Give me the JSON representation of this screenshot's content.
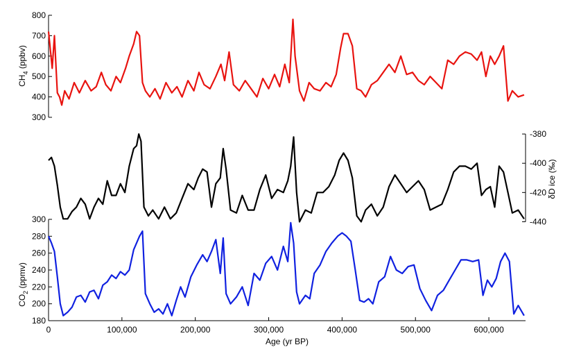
{
  "chart_data": {
    "type": "line",
    "x_axis": {
      "label": "Age (yr BP)",
      "lim": [
        0,
        650000
      ],
      "ticks": [
        0,
        100000,
        200000,
        300000,
        400000,
        500000,
        600000
      ],
      "tick_labels": [
        "0",
        "100,000",
        "200,000",
        "300,000",
        "400,000",
        "500,000",
        "600,000"
      ]
    },
    "panels": [
      {
        "name": "methane",
        "ylabel_main": "CH",
        "ylabel_sub": "4",
        "ylabel_tail": " (ppbv)",
        "axis_side": "left",
        "ylim": [
          300,
          800
        ],
        "ticks": [
          300,
          400,
          500,
          600,
          700,
          800
        ],
        "tick_labels": [
          "300",
          "400",
          "500",
          "600",
          "700",
          "800"
        ],
        "color": "#e8130f",
        "series": {
          "x": [
            0,
            5000,
            8000,
            12000,
            15000,
            18000,
            22000,
            28000,
            35000,
            42000,
            50000,
            58000,
            65000,
            72000,
            78000,
            85000,
            92000,
            98000,
            105000,
            110000,
            116000,
            120000,
            124000,
            128000,
            132000,
            138000,
            145000,
            152000,
            160000,
            168000,
            175000,
            182000,
            190000,
            198000,
            205000,
            212000,
            220000,
            228000,
            235000,
            240000,
            246000,
            252000,
            260000,
            268000,
            276000,
            284000,
            292000,
            300000,
            308000,
            315000,
            322000,
            328000,
            333000,
            336000,
            342000,
            348000,
            355000,
            362000,
            370000,
            378000,
            385000,
            392000,
            398000,
            402000,
            408000,
            414000,
            420000,
            426000,
            432000,
            440000,
            448000,
            456000,
            464000,
            472000,
            480000,
            488000,
            496000,
            504000,
            512000,
            520000,
            528000,
            536000,
            544000,
            552000,
            560000,
            568000,
            576000,
            584000,
            590000,
            596000,
            602000,
            608000,
            614000,
            620000,
            626000,
            632000,
            640000,
            648000
          ],
          "y": [
            720,
            540,
            700,
            420,
            400,
            360,
            430,
            390,
            470,
            420,
            480,
            430,
            450,
            520,
            460,
            430,
            500,
            470,
            540,
            600,
            660,
            720,
            700,
            470,
            430,
            400,
            440,
            390,
            470,
            420,
            450,
            400,
            480,
            430,
            520,
            460,
            440,
            500,
            560,
            480,
            620,
            460,
            430,
            480,
            440,
            400,
            490,
            440,
            510,
            450,
            560,
            470,
            780,
            600,
            430,
            380,
            470,
            440,
            430,
            470,
            450,
            510,
            640,
            710,
            710,
            650,
            440,
            430,
            400,
            460,
            480,
            520,
            560,
            520,
            600,
            510,
            520,
            480,
            460,
            500,
            470,
            440,
            580,
            560,
            600,
            620,
            610,
            580,
            620,
            500,
            600,
            560,
            600,
            650,
            380,
            430,
            400,
            410
          ]
        }
      },
      {
        "name": "deuterium",
        "ylabel_main": "δD ice (‰)",
        "axis_side": "right",
        "ylim": [
          -445,
          -370
        ],
        "ticks": [
          -440,
          -420,
          -400,
          -380
        ],
        "tick_labels": [
          "-440",
          "-420",
          "-400",
          "-380"
        ],
        "color": "#000000",
        "series": {
          "x": [
            0,
            4000,
            8000,
            12000,
            16000,
            20000,
            26000,
            32000,
            38000,
            44000,
            50000,
            56000,
            62000,
            68000,
            74000,
            80000,
            86000,
            92000,
            98000,
            104000,
            110000,
            116000,
            120000,
            123000,
            126000,
            130000,
            136000,
            142000,
            150000,
            158000,
            166000,
            174000,
            182000,
            190000,
            198000,
            204000,
            210000,
            216000,
            222000,
            228000,
            234000,
            238000,
            242000,
            248000,
            256000,
            264000,
            272000,
            280000,
            288000,
            296000,
            304000,
            312000,
            320000,
            326000,
            330000,
            334000,
            338000,
            342000,
            350000,
            358000,
            366000,
            374000,
            382000,
            390000,
            396000,
            402000,
            408000,
            414000,
            420000,
            426000,
            432000,
            440000,
            448000,
            456000,
            464000,
            472000,
            480000,
            488000,
            496000,
            504000,
            512000,
            520000,
            528000,
            536000,
            544000,
            552000,
            560000,
            568000,
            576000,
            584000,
            590000,
            596000,
            602000,
            608000,
            614000,
            620000,
            626000,
            632000,
            640000,
            648000
          ],
          "y": [
            -398,
            -396,
            -402,
            -415,
            -430,
            -438,
            -438,
            -433,
            -430,
            -424,
            -428,
            -438,
            -430,
            -424,
            -428,
            -412,
            -422,
            -422,
            -414,
            -420,
            -402,
            -390,
            -388,
            -380,
            -385,
            -430,
            -436,
            -432,
            -438,
            -430,
            -438,
            -434,
            -424,
            -414,
            -418,
            -410,
            -404,
            -406,
            -430,
            -414,
            -410,
            -390,
            -404,
            -432,
            -434,
            -422,
            -432,
            -432,
            -418,
            -408,
            -424,
            -418,
            -420,
            -412,
            -402,
            -382,
            -420,
            -440,
            -432,
            -434,
            -420,
            -420,
            -416,
            -408,
            -398,
            -393,
            -398,
            -410,
            -436,
            -440,
            -432,
            -428,
            -436,
            -430,
            -416,
            -408,
            -414,
            -420,
            -416,
            -412,
            -418,
            -432,
            -430,
            -428,
            -418,
            -406,
            -402,
            -402,
            -404,
            -400,
            -422,
            -418,
            -416,
            -430,
            -402,
            -406,
            -420,
            -434,
            -432,
            -438
          ]
        }
      },
      {
        "name": "co2",
        "ylabel_main": "CO",
        "ylabel_sub": "2",
        "ylabel_tail": " (ppmv)",
        "axis_side": "left",
        "ylim": [
          180,
          300
        ],
        "ticks": [
          180,
          200,
          220,
          240,
          260,
          280,
          300
        ],
        "tick_labels": [
          "180",
          "200",
          "220",
          "240",
          "260",
          "280",
          "300"
        ],
        "color": "#1021e0",
        "series": {
          "x": [
            0,
            4000,
            8000,
            12000,
            16000,
            20000,
            26000,
            32000,
            38000,
            44000,
            50000,
            56000,
            62000,
            68000,
            74000,
            80000,
            86000,
            92000,
            98000,
            104000,
            110000,
            116000,
            120000,
            124000,
            128000,
            132000,
            138000,
            144000,
            150000,
            156000,
            162000,
            168000,
            174000,
            180000,
            186000,
            194000,
            202000,
            210000,
            216000,
            222000,
            228000,
            234000,
            238000,
            242000,
            248000,
            256000,
            264000,
            272000,
            280000,
            288000,
            296000,
            304000,
            312000,
            320000,
            326000,
            330000,
            334000,
            338000,
            342000,
            350000,
            356000,
            362000,
            370000,
            378000,
            386000,
            394000,
            400000,
            406000,
            412000,
            418000,
            424000,
            430000,
            436000,
            442000,
            450000,
            458000,
            466000,
            474000,
            482000,
            490000,
            498000,
            506000,
            514000,
            522000,
            530000,
            538000,
            546000,
            554000,
            562000,
            570000,
            578000,
            586000,
            592000,
            598000,
            604000,
            610000,
            616000,
            622000,
            628000,
            634000,
            640000,
            648000
          ],
          "y": [
            280,
            272,
            262,
            232,
            200,
            186,
            190,
            196,
            208,
            210,
            202,
            214,
            216,
            206,
            222,
            226,
            234,
            230,
            238,
            234,
            240,
            264,
            272,
            280,
            286,
            212,
            200,
            190,
            194,
            188,
            200,
            186,
            204,
            220,
            208,
            232,
            246,
            258,
            250,
            262,
            276,
            236,
            278,
            212,
            200,
            208,
            220,
            198,
            236,
            228,
            248,
            256,
            240,
            268,
            250,
            296,
            272,
            214,
            200,
            210,
            206,
            236,
            246,
            262,
            272,
            280,
            284,
            280,
            274,
            240,
            204,
            202,
            206,
            200,
            226,
            232,
            256,
            240,
            236,
            244,
            246,
            218,
            204,
            192,
            210,
            216,
            228,
            240,
            252,
            252,
            250,
            252,
            210,
            228,
            220,
            230,
            250,
            260,
            250,
            188,
            198,
            186
          ]
        }
      }
    ]
  }
}
